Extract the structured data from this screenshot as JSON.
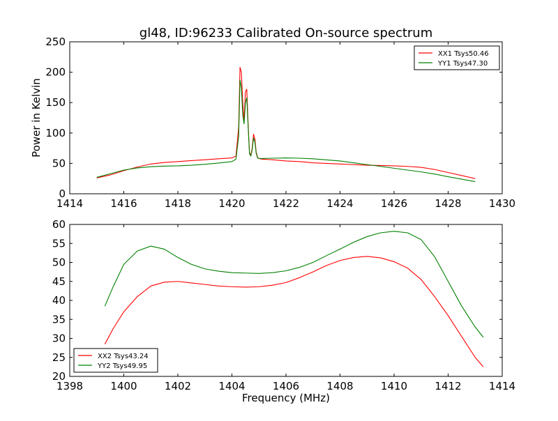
{
  "figure": {
    "title": "gl48, ID:96233 Calibrated On-source spectrum"
  },
  "chart_data": [
    {
      "type": "line",
      "title": "gl48, ID:96233 Calibrated On-source spectrum",
      "xlabel": "",
      "ylabel": "Power in Kelvin",
      "xlim": [
        1414,
        1430
      ],
      "ylim": [
        0,
        250
      ],
      "xticks": [
        1414,
        1416,
        1418,
        1420,
        1422,
        1424,
        1426,
        1428,
        1430
      ],
      "yticks": [
        0,
        50,
        100,
        150,
        200,
        250
      ],
      "grid": false,
      "legend": "top-right",
      "series": [
        {
          "name": "XX1 Tsys50.46",
          "color": "#ff0000",
          "x": [
            1415.0,
            1415.5,
            1416.0,
            1416.5,
            1417.0,
            1417.5,
            1418.0,
            1418.5,
            1419.0,
            1419.5,
            1420.0,
            1420.15,
            1420.25,
            1420.3,
            1420.35,
            1420.4,
            1420.45,
            1420.5,
            1420.55,
            1420.6,
            1420.65,
            1420.7,
            1420.75,
            1420.8,
            1420.85,
            1420.9,
            1420.95,
            1421.0,
            1421.1,
            1421.5,
            1422.0,
            1422.5,
            1423.0,
            1424.0,
            1425.0,
            1425.5,
            1426.0,
            1426.5,
            1427.0,
            1427.5,
            1428.0,
            1428.5,
            1429.0
          ],
          "y": [
            26,
            31,
            38,
            44,
            49,
            51.5,
            53,
            54.5,
            56,
            57.5,
            59,
            62,
            110,
            208,
            200,
            150,
            120,
            168,
            172,
            115,
            68,
            63,
            75,
            98,
            90,
            68,
            60,
            58,
            57,
            56,
            54,
            53,
            51,
            49,
            47,
            46.5,
            46,
            45,
            43.5,
            40,
            35,
            30,
            25
          ]
        },
        {
          "name": "YY1 Tsys47.30",
          "color": "#008000",
          "x": [
            1415.0,
            1415.5,
            1416.0,
            1416.5,
            1417.0,
            1417.5,
            1418.0,
            1418.5,
            1419.0,
            1419.5,
            1420.0,
            1420.15,
            1420.25,
            1420.3,
            1420.35,
            1420.4,
            1420.45,
            1420.5,
            1420.55,
            1420.6,
            1420.65,
            1420.7,
            1420.75,
            1420.8,
            1420.85,
            1420.9,
            1420.95,
            1421.0,
            1421.1,
            1421.5,
            1422.0,
            1422.5,
            1423.0,
            1424.0,
            1425.0,
            1425.5,
            1426.0,
            1426.5,
            1427.0,
            1427.5,
            1428.0,
            1428.5,
            1429.0
          ],
          "y": [
            27,
            33,
            39,
            42.5,
            44.5,
            45.5,
            46,
            47,
            48.5,
            50.5,
            53,
            57,
            95,
            187,
            175,
            130,
            115,
            150,
            158,
            110,
            66,
            62,
            72,
            92,
            85,
            66,
            59,
            58,
            58,
            58.5,
            59,
            58.5,
            57.5,
            54,
            48,
            45,
            42,
            39,
            36,
            32.5,
            28,
            24,
            20
          ]
        }
      ]
    },
    {
      "type": "line",
      "title": "",
      "xlabel": "Frequency (MHz)",
      "ylabel": "",
      "xlim": [
        1398,
        1414
      ],
      "ylim": [
        20,
        60
      ],
      "xticks": [
        1398,
        1400,
        1402,
        1404,
        1406,
        1408,
        1410,
        1412,
        1414
      ],
      "yticks": [
        20,
        25,
        30,
        35,
        40,
        45,
        50,
        55,
        60
      ],
      "grid": false,
      "legend": "bottom-left",
      "series": [
        {
          "name": "XX2 Tsys43.24",
          "color": "#ff0000",
          "x": [
            1399.3,
            1399.6,
            1400.0,
            1400.5,
            1401.0,
            1401.5,
            1402.0,
            1402.5,
            1403.0,
            1403.5,
            1404.0,
            1404.5,
            1405.0,
            1405.5,
            1406.0,
            1406.5,
            1407.0,
            1407.5,
            1408.0,
            1408.5,
            1409.0,
            1409.5,
            1410.0,
            1410.5,
            1411.0,
            1411.5,
            1412.0,
            1412.5,
            1413.0,
            1413.3
          ],
          "y": [
            28.5,
            32.5,
            37,
            41,
            43.8,
            44.8,
            45,
            44.6,
            44.2,
            43.8,
            43.6,
            43.5,
            43.6,
            44,
            44.7,
            46,
            47.5,
            49.2,
            50.5,
            51.3,
            51.6,
            51.2,
            50.2,
            48.5,
            45.5,
            41,
            36,
            30.5,
            25,
            22.5
          ]
        },
        {
          "name": "YY2 Tsys49.95",
          "color": "#008000",
          "x": [
            1399.3,
            1399.6,
            1400.0,
            1400.5,
            1401.0,
            1401.5,
            1402.0,
            1402.5,
            1403.0,
            1403.5,
            1404.0,
            1404.5,
            1405.0,
            1405.5,
            1406.0,
            1406.5,
            1407.0,
            1407.5,
            1408.0,
            1408.5,
            1409.0,
            1409.5,
            1410.0,
            1410.5,
            1411.0,
            1411.5,
            1412.0,
            1412.5,
            1413.0,
            1413.3
          ],
          "y": [
            38.5,
            43.5,
            49.5,
            53,
            54.3,
            53.5,
            51.3,
            49.5,
            48.3,
            47.7,
            47.3,
            47.2,
            47.1,
            47.3,
            47.8,
            48.7,
            50,
            51.8,
            53.5,
            55.3,
            56.8,
            57.8,
            58.2,
            57.8,
            56,
            51.5,
            45,
            38.5,
            33,
            30.3
          ]
        }
      ]
    }
  ]
}
